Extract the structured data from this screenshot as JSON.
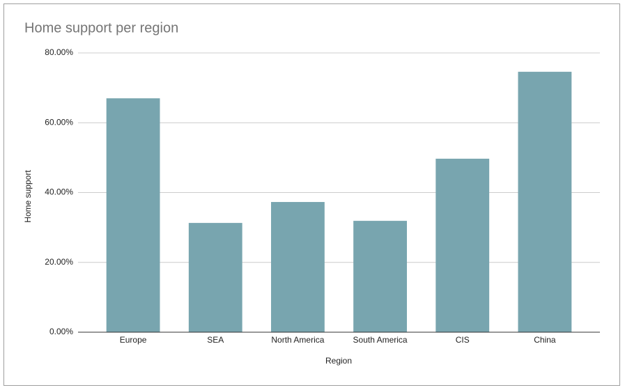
{
  "chart_data": {
    "type": "bar",
    "title": "Home support per region",
    "x_label": "Region",
    "y_label": "Home support",
    "categories": [
      "Europe",
      "SEA",
      "North America",
      "South America",
      "CIS",
      "China"
    ],
    "values": [
      67.0,
      31.3,
      37.3,
      31.9,
      49.7,
      74.6
    ],
    "color": "#78a5af",
    "ylim": [
      0,
      80
    ],
    "yticks": [
      {
        "value": 0,
        "label": "0.00%"
      },
      {
        "value": 20,
        "label": "20.00%"
      },
      {
        "value": 40,
        "label": "40.00%"
      },
      {
        "value": 60,
        "label": "60.00%"
      },
      {
        "value": 80,
        "label": "80.00%"
      }
    ],
    "grid": true
  }
}
